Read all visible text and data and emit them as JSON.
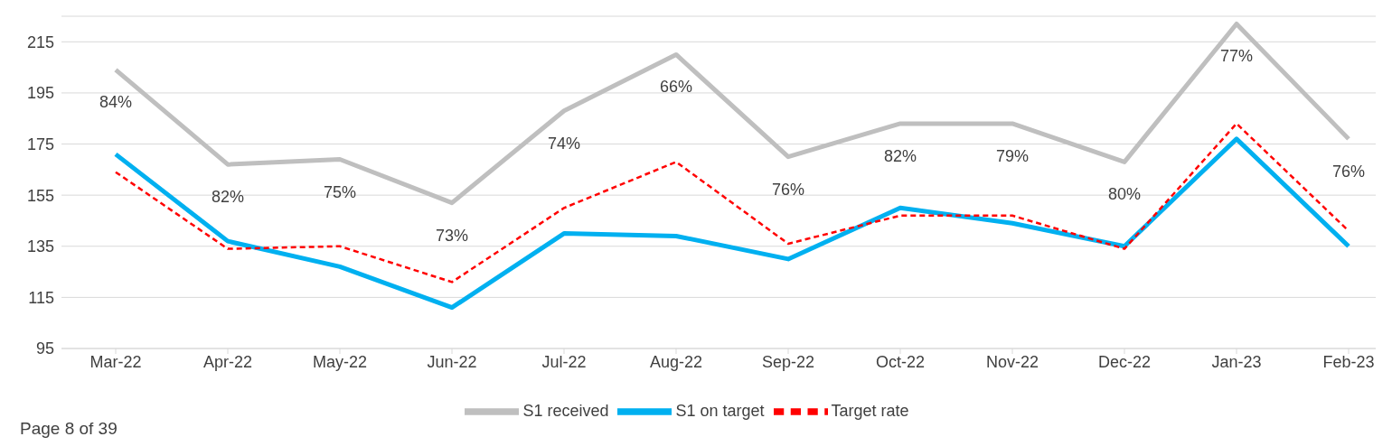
{
  "chart_data": {
    "type": "line",
    "categories": [
      "Mar-22",
      "Apr-22",
      "May-22",
      "Jun-22",
      "Jul-22",
      "Aug-22",
      "Sep-22",
      "Oct-22",
      "Nov-22",
      "Dec-22",
      "Jan-23",
      "Feb-23"
    ],
    "series": [
      {
        "name": "S1 received",
        "color": "#bfbfbf",
        "values": [
          204,
          167,
          169,
          152,
          188,
          210,
          170,
          183,
          183,
          168,
          222,
          177
        ]
      },
      {
        "name": "S1 on target",
        "color": "#00b0f0",
        "values": [
          171,
          137,
          127,
          111,
          140,
          139,
          130,
          150,
          144,
          135,
          177,
          135
        ]
      },
      {
        "name": "Target rate",
        "color": "#ff0000",
        "line_style": "dashed",
        "values": [
          164,
          134,
          135,
          121,
          150,
          168,
          136,
          147,
          147,
          134,
          183,
          141
        ]
      }
    ],
    "ylim": [
      95,
      225
    ],
    "yticks": [
      95,
      115,
      135,
      155,
      175,
      195,
      215
    ],
    "grid": "y",
    "legend": "bottom",
    "marker": "none",
    "annotations": [
      "Page 8 of 39",
      {
        "text": "84%",
        "x": "Mar-22",
        "y": 204
      },
      {
        "text": "82%",
        "x": "Apr-22",
        "y": 167
      },
      {
        "text": "75%",
        "x": "May-22",
        "y": 169
      },
      {
        "text": "73%",
        "x": "Jun-22",
        "y": 152
      },
      {
        "text": "74%",
        "x": "Jul-22",
        "y": 188
      },
      {
        "text": "66%",
        "x": "Aug-22",
        "y": 210
      },
      {
        "text": "76%",
        "x": "Sep-22",
        "y": 170
      },
      {
        "text": "82%",
        "x": "Oct-22",
        "y": 183
      },
      {
        "text": "79%",
        "x": "Nov-22",
        "y": 183
      },
      {
        "text": "80%",
        "x": "Dec-22",
        "y": 168
      },
      {
        "text": "77%",
        "x": "Jan-23",
        "y": 222
      },
      {
        "text": "76%",
        "x": "Feb-23",
        "y": 177
      }
    ]
  }
}
